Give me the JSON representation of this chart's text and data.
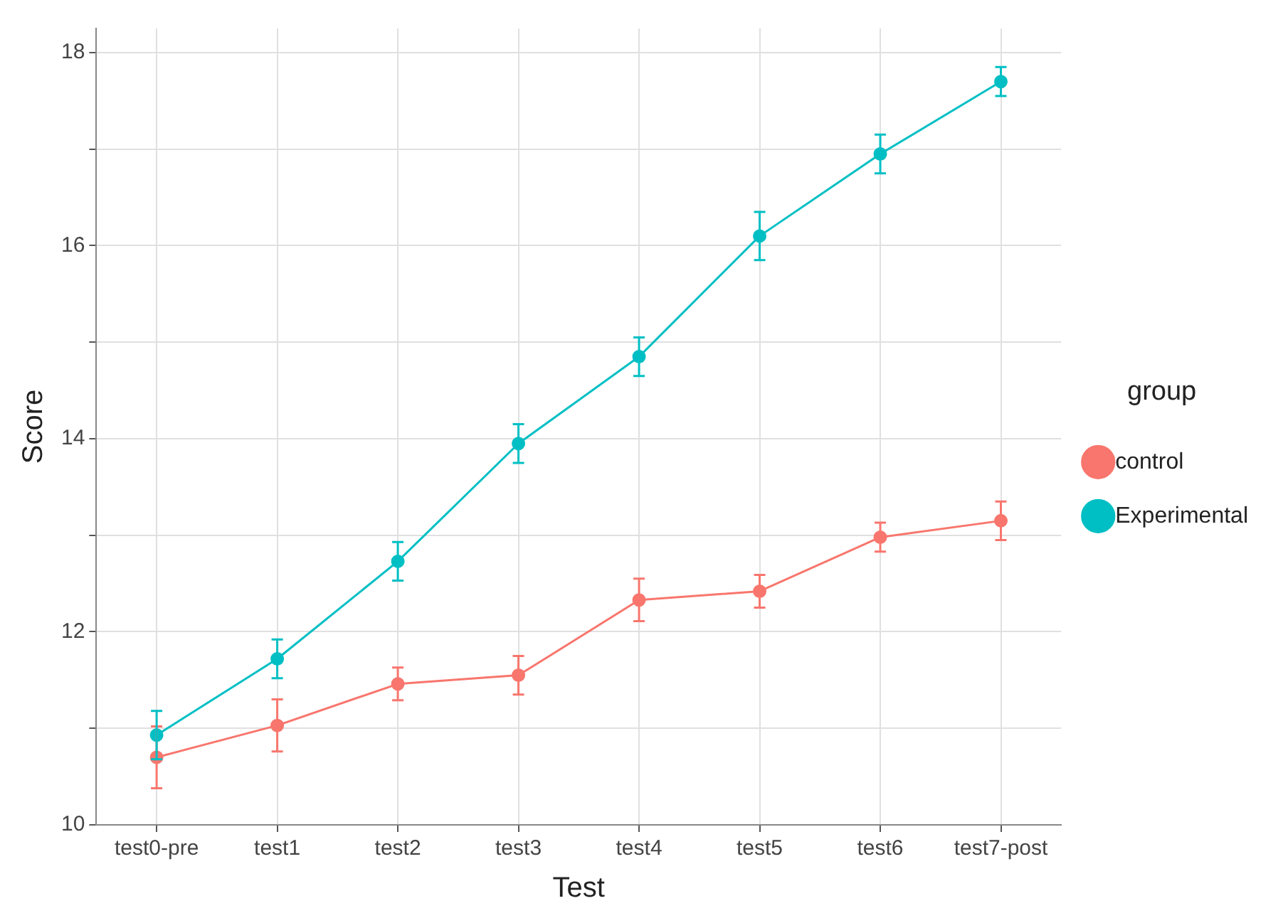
{
  "chart_data": {
    "type": "line",
    "xlabel": "Test",
    "ylabel": "Score",
    "legend_title": "group",
    "legend": "right",
    "grid": true,
    "marker": "circle",
    "line_style": "solid",
    "categories": [
      "test0-pre",
      "test1",
      "test2",
      "test3",
      "test4",
      "test5",
      "test6",
      "test7-post"
    ],
    "ylim": [
      10,
      18.25
    ],
    "yticks": [
      10,
      {
        "value": 11,
        "label": null
      },
      12,
      {
        "value": 13,
        "label": null
      },
      14,
      {
        "value": 15,
        "label": null
      },
      16,
      {
        "value": 17,
        "label": null
      },
      18
    ],
    "series": [
      {
        "name": "control",
        "color": "#f8766d",
        "values": [
          10.7,
          11.03,
          11.46,
          11.55,
          12.33,
          12.42,
          12.98,
          13.15
        ],
        "errors": [
          0.32,
          0.27,
          0.17,
          0.2,
          0.22,
          0.17,
          0.15,
          0.2
        ]
      },
      {
        "name": "Experimental",
        "color": "#00bfc4",
        "values": [
          10.93,
          11.72,
          12.73,
          13.95,
          14.85,
          16.1,
          16.95,
          17.7
        ],
        "errors": [
          0.25,
          0.2,
          0.2,
          0.2,
          0.2,
          0.25,
          0.2,
          0.15
        ]
      }
    ]
  }
}
